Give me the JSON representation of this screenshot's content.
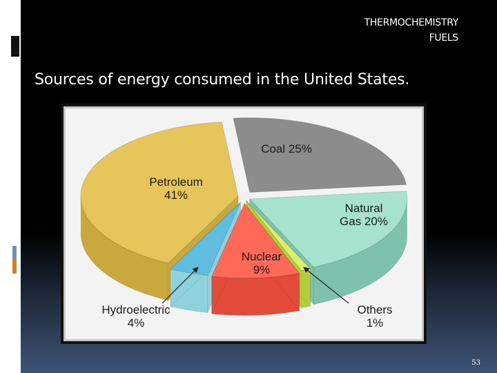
{
  "header": {
    "topic": "THERMOCHEMISTRY",
    "subtopic": "FUELS"
  },
  "slide_title": "Sources of energy consumed in the United States.",
  "page_number": "53",
  "chart_data": {
    "type": "pie",
    "style": "3d-exploded",
    "slices": [
      {
        "label": "Coal",
        "value": 25,
        "display": "Coal 25%",
        "color": "#8c8c8c",
        "side": "#5e5e5e"
      },
      {
        "label": "Natural Gas",
        "value": 20,
        "display": "Natural Gas 20%",
        "color": "#a7e2cf",
        "side": "#7ec2ad"
      },
      {
        "label": "Others",
        "value": 1,
        "display": "Others 1%",
        "color": "#d8f06a",
        "side": "#b2cf3c"
      },
      {
        "label": "Nuclear",
        "value": 9,
        "display": "Nuclear 9%",
        "color": "#ff6a58",
        "side": "#e24a3a"
      },
      {
        "label": "Hydroelectric",
        "value": 4,
        "display": "Hydroelectric 4%",
        "color": "#5fbde0",
        "side": "#8fd2dc"
      },
      {
        "label": "Petroleum",
        "value": 41,
        "display": "Petroleum 41%",
        "color": "#e6c55a",
        "side": "#c9a83d"
      }
    ],
    "labels": {
      "coal": [
        "Coal 25%"
      ],
      "gas": [
        "Natural",
        "Gas 20%"
      ],
      "others": [
        "Others",
        "1%"
      ],
      "nuclear": [
        "Nuclear",
        "9%"
      ],
      "hydro": [
        "Hydroelectric",
        "4%"
      ],
      "petroleum": [
        "Petroleum",
        "41%"
      ]
    },
    "title": "",
    "legend": "none"
  }
}
